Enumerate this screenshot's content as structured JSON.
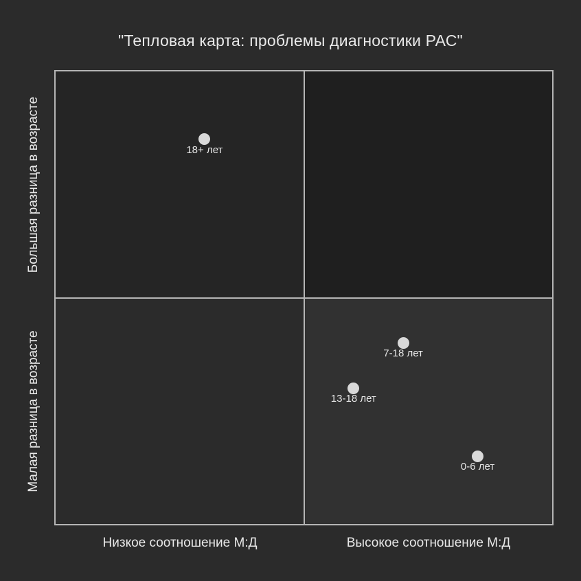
{
  "page": {
    "background": "#2b2b2b",
    "text_color": "#e8e8e8"
  },
  "chart_data": {
    "type": "scatter",
    "variant": "quadrant-chart",
    "title": "\"Тепловая карта: проблемы диагностики РАС\"",
    "x_axis": {
      "left_label": "Низкое соотношение М:Д",
      "right_label": "Высокое соотношение М:Д"
    },
    "y_axis": {
      "top_label": "Большая разница в возрасте",
      "bottom_label": "Малая разница в возрасте"
    },
    "xlim": [
      0,
      1
    ],
    "ylim": [
      0,
      1
    ],
    "grid": false,
    "legend": false,
    "points": [
      {
        "label": "18+ лет",
        "x": 0.3,
        "y": 0.85
      },
      {
        "label": "7-18 лет",
        "x": 0.7,
        "y": 0.4
      },
      {
        "label": "13-18 лет",
        "x": 0.6,
        "y": 0.3
      },
      {
        "label": "0-6 лет",
        "x": 0.85,
        "y": 0.15
      }
    ],
    "quadrant_fills": {
      "top_left": "#252525",
      "top_right": "#1f1f1f",
      "bottom_left": "#2b2b2b",
      "bottom_right": "#313131"
    },
    "line_color": "#b5b5b5",
    "point_color": "#d9d9d9"
  }
}
